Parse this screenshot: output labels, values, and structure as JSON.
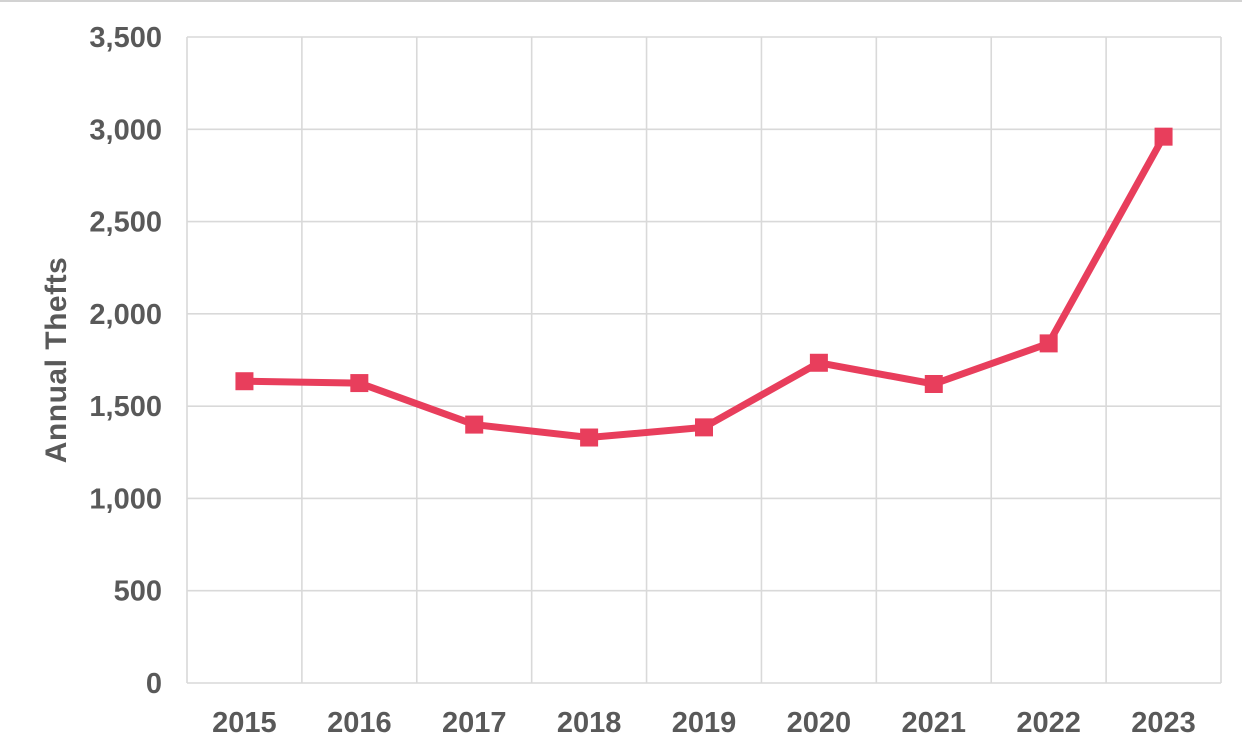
{
  "page": {
    "background": "#ffffff",
    "top_edge_color": "#d2d2d2"
  },
  "chart_data": {
    "type": "line",
    "title": "",
    "xlabel": "",
    "ylabel": "Annual Thefts",
    "categories": [
      "2015",
      "2016",
      "2017",
      "2018",
      "2019",
      "2020",
      "2021",
      "2022",
      "2023"
    ],
    "series": [
      {
        "name": "Annual Thefts",
        "color": "#e83e5c",
        "marker": "square",
        "values": [
          1635,
          1625,
          1400,
          1330,
          1385,
          1735,
          1620,
          1840,
          2960
        ]
      }
    ],
    "ylim": [
      0,
      3500
    ],
    "ytick_step": 500,
    "ytick_labels": [
      "0",
      "500",
      "1,000",
      "1,500",
      "2,000",
      "2,500",
      "3,000",
      "3,500"
    ],
    "grid": "both",
    "legend": "none",
    "styles": {
      "gridline_color": "#d9d9d9",
      "text_color": "#595959",
      "line_width": 7,
      "marker_size": 18
    }
  }
}
